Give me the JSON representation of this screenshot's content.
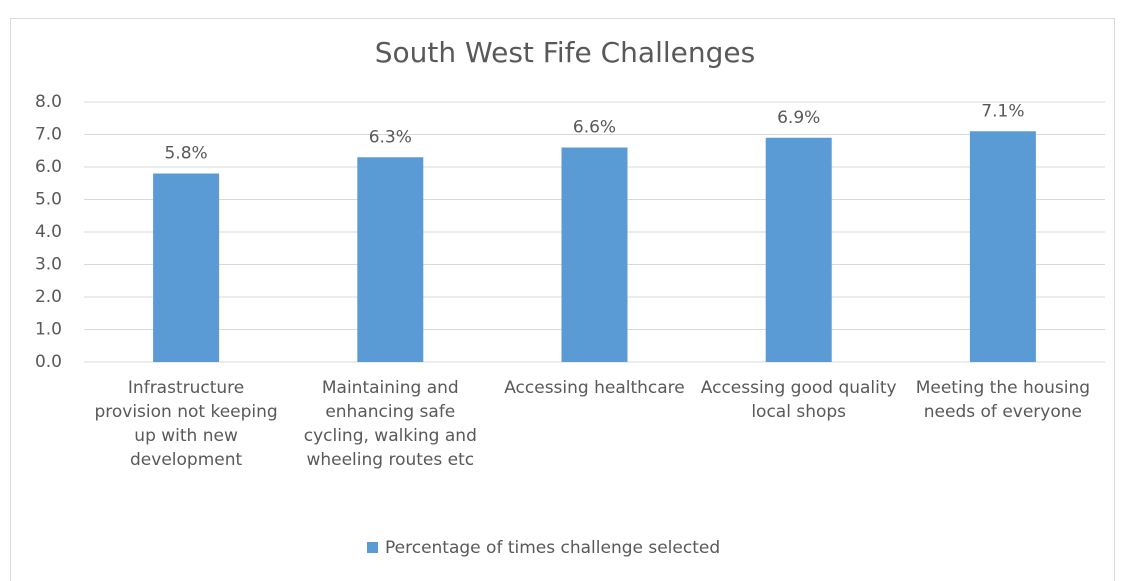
{
  "chart_data": {
    "type": "bar",
    "title": "South West Fife Challenges",
    "categories": [
      "Infrastructure provision not keeping up with new development",
      "Maintaining and enhancing safe cycling, walking and wheeling routes etc",
      "Accessing healthcare",
      "Accessing good quality local shops",
      "Meeting the housing needs of everyone"
    ],
    "series": [
      {
        "name": "Percentage of times challenge selected",
        "color": "#5b9bd5",
        "values": [
          5.8,
          6.3,
          6.6,
          6.9,
          7.1
        ],
        "value_labels": [
          "5.8%",
          "6.3%",
          "6.6%",
          "6.9%",
          "7.1%"
        ]
      }
    ],
    "ylim": [
      0,
      8
    ],
    "yticks": [
      {
        "value": 0,
        "label": "0.0"
      },
      {
        "value": 1,
        "label": "1.0"
      },
      {
        "value": 2,
        "label": "2.0"
      },
      {
        "value": 3,
        "label": "3.0"
      },
      {
        "value": 4,
        "label": "4.0"
      },
      {
        "value": 5,
        "label": "5.0"
      },
      {
        "value": 6,
        "label": "6.0"
      },
      {
        "value": 7,
        "label": "7.0"
      },
      {
        "value": 8,
        "label": "8.0"
      }
    ],
    "grid": true,
    "legend": "bottom"
  }
}
